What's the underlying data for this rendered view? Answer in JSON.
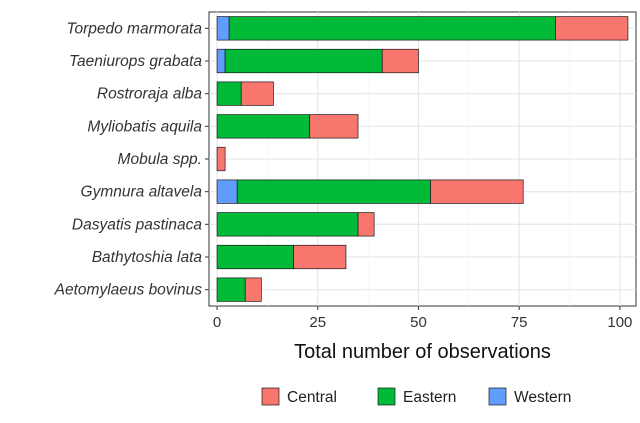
{
  "chart_data": {
    "type": "bar",
    "orientation": "horizontal",
    "stacked": true,
    "title": "",
    "xlabel": "Total number of observations",
    "ylabel": "",
    "xlim": [
      -2,
      104
    ],
    "xticks": [
      0,
      25,
      50,
      75,
      100
    ],
    "grid": true,
    "legend_position": "bottom",
    "categories": [
      "Torpedo marmorata",
      "Taeniurops grabata",
      "Rostroraja alba",
      "Myliobatis aquila",
      "Mobula spp.",
      "Gymnura altavela",
      "Dasyatis pastinaca",
      "Bathytoshia lata",
      "Aetomylaeus bovinus"
    ],
    "stack_order": [
      "Western",
      "Eastern",
      "Central"
    ],
    "series": [
      {
        "name": "Central",
        "color": "#F8766D",
        "values": [
          18,
          9,
          8,
          12,
          2,
          23,
          4,
          13,
          4
        ]
      },
      {
        "name": "Eastern",
        "color": "#00BA38",
        "values": [
          81,
          39,
          6,
          23,
          0,
          48,
          35,
          19,
          7
        ]
      },
      {
        "name": "Western",
        "color": "#619CFF",
        "values": [
          3,
          2,
          0,
          0,
          0,
          5,
          0,
          0,
          0
        ]
      }
    ]
  }
}
